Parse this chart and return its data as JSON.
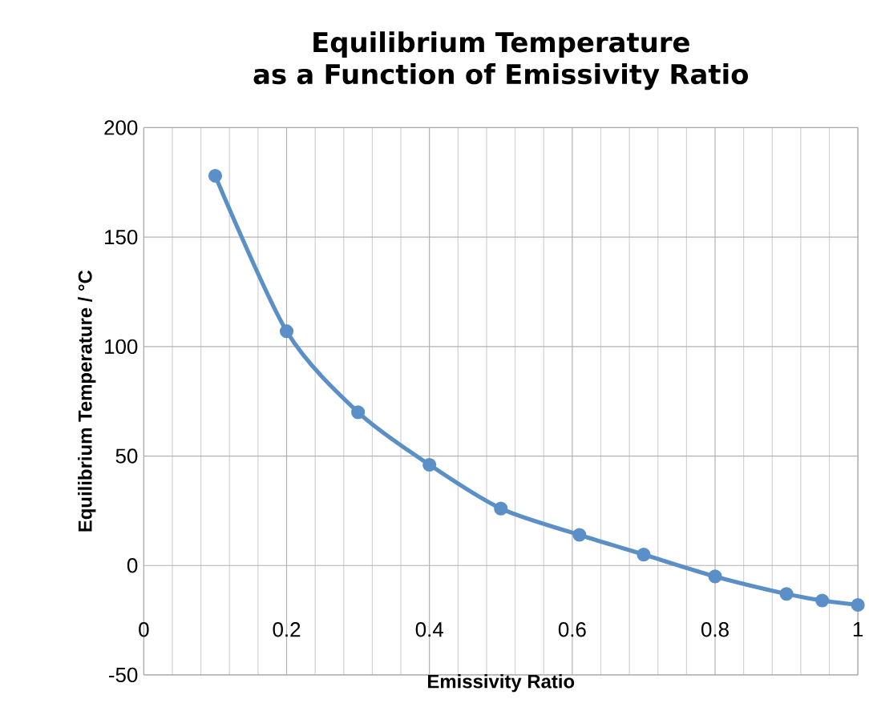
{
  "chart_data": {
    "type": "line",
    "title": "Equilibrium Temperature\nas a Function of Emissivity Ratio",
    "xlabel": "Emissivity Ratio",
    "ylabel": "Equilibrium Temperature / °C",
    "x": [
      0.1,
      0.2,
      0.3,
      0.4,
      0.5,
      0.61,
      0.7,
      0.8,
      0.9,
      0.95,
      1.0
    ],
    "series": [
      {
        "color": "#5b8fc7",
        "values": [
          178,
          107,
          70,
          46,
          26,
          14,
          5,
          -5,
          -13,
          -16,
          -18
        ]
      }
    ],
    "xlim": [
      0,
      1
    ],
    "ylim": [
      -50,
      200
    ],
    "xticks": [
      0,
      0.2,
      0.4,
      0.6,
      0.8,
      1
    ],
    "yticks": [
      -50,
      0,
      50,
      100,
      150,
      200
    ],
    "grid": true,
    "marker": "circle",
    "line_style": "solid"
  }
}
